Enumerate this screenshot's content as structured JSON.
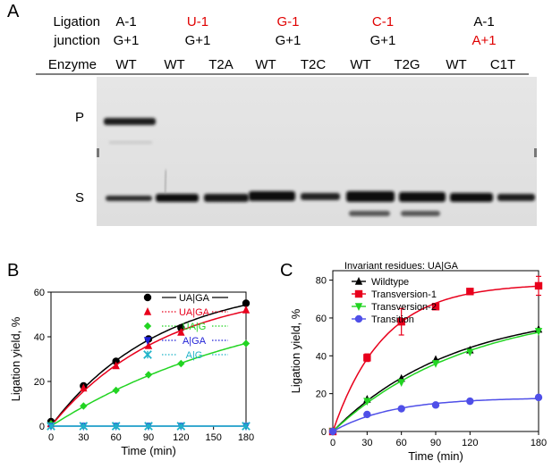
{
  "panel_a": {
    "letter": "A",
    "row_label_1": "Ligation",
    "row_label_2": "junction",
    "enzyme_label": "Enzyme",
    "groups": [
      {
        "top": "A-1",
        "top_red": false,
        "bottom": "G+1",
        "bottom_red": false,
        "lanes": [
          "WT"
        ]
      },
      {
        "top": "U-1",
        "top_red": true,
        "bottom": "G+1",
        "bottom_red": false,
        "lanes": [
          "WT",
          "T2A"
        ]
      },
      {
        "top": "G-1",
        "top_red": true,
        "bottom": "G+1",
        "bottom_red": false,
        "lanes": [
          "WT",
          "T2C"
        ]
      },
      {
        "top": "C-1",
        "top_red": true,
        "bottom": "G+1",
        "bottom_red": false,
        "lanes": [
          "WT",
          "T2G"
        ]
      },
      {
        "top": "A-1",
        "top_red": false,
        "bottom": "A+1",
        "bottom_red": true,
        "lanes": [
          "WT",
          "C1T"
        ]
      }
    ],
    "band_p": "P",
    "band_s": "S"
  },
  "chart_data": [
    {
      "panel": "B",
      "type": "line",
      "xlabel": "Time (min)",
      "ylabel": "Ligation yield, %",
      "xlim": [
        0,
        180
      ],
      "ylim": [
        0,
        60
      ],
      "xticks": [
        0,
        30,
        60,
        90,
        120,
        150,
        180
      ],
      "yticks": [
        0,
        20,
        40,
        60
      ],
      "legend_position": "top-right",
      "series": [
        {
          "name": "UA|GA",
          "color": "#000000",
          "marker": "circle",
          "x": [
            0,
            30,
            60,
            90,
            120,
            180
          ],
          "y": [
            2,
            18,
            29,
            39,
            44,
            55
          ]
        },
        {
          "name": "UA|GA",
          "color": "#e8001c",
          "marker": "triangle",
          "x": [
            0,
            30,
            60,
            90,
            120,
            180
          ],
          "y": [
            1,
            17,
            27,
            36,
            42,
            52
          ]
        },
        {
          "name": "UA|G",
          "color": "#22d422",
          "marker": "diamond",
          "x": [
            0,
            30,
            60,
            90,
            120,
            180
          ],
          "y": [
            1,
            9,
            16,
            23,
            28,
            37
          ]
        },
        {
          "name": "A|GA",
          "color": "#1f1fd6",
          "marker": "triangle-down",
          "x": [
            0,
            30,
            60,
            90,
            120,
            180
          ],
          "y": [
            0,
            0,
            0,
            0,
            0,
            0
          ]
        },
        {
          "name": "A|G",
          "color": "#1fb3c8",
          "marker": "x",
          "x": [
            0,
            30,
            60,
            90,
            120,
            180
          ],
          "y": [
            0,
            0,
            0,
            0,
            0,
            0
          ]
        }
      ]
    },
    {
      "panel": "C",
      "type": "line",
      "legend_title": "Invariant residues: UA|GA",
      "xlabel": "Time (min)",
      "ylabel": "Ligation yield, %",
      "xlim": [
        0,
        180
      ],
      "ylim": [
        0,
        85
      ],
      "xticks": [
        0,
        30,
        60,
        90,
        120,
        180
      ],
      "yticks": [
        0,
        20,
        40,
        60,
        80
      ],
      "legend_position": "top-left",
      "series": [
        {
          "name": "Wildtype",
          "color": "#000000",
          "marker": "triangle",
          "x": [
            0,
            30,
            60,
            90,
            120,
            180
          ],
          "y": [
            0,
            17,
            28,
            38,
            43,
            54
          ]
        },
        {
          "name": "Transversion-1",
          "color": "#e8001c",
          "marker": "square",
          "x": [
            0,
            30,
            60,
            90,
            120,
            180
          ],
          "y": [
            0,
            39,
            58,
            66,
            74,
            77
          ],
          "err": [
            0,
            2,
            7,
            1,
            1,
            5
          ]
        },
        {
          "name": "Transversion-2",
          "color": "#22d422",
          "marker": "triangle-down",
          "x": [
            0,
            30,
            60,
            90,
            120,
            180
          ],
          "y": [
            0,
            16,
            26,
            36,
            42,
            53
          ]
        },
        {
          "name": "Transition",
          "color": "#4f4fe8",
          "marker": "circle",
          "x": [
            0,
            30,
            60,
            90,
            120,
            180
          ],
          "y": [
            0,
            9,
            12,
            14,
            16,
            18
          ]
        }
      ]
    }
  ]
}
